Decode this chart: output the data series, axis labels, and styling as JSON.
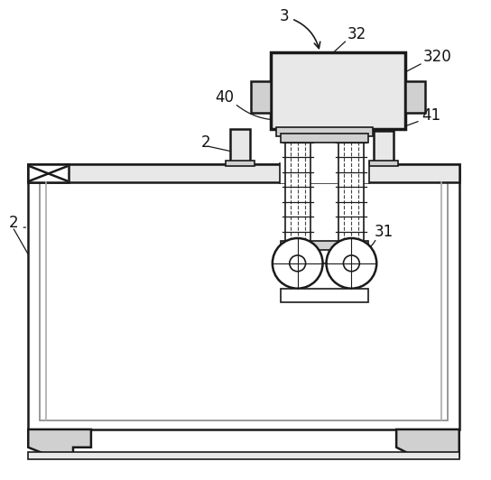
{
  "bg_color": "#ffffff",
  "lc": "#1a1a1a",
  "gray1": "#e8e8e8",
  "gray2": "#d0d0d0",
  "figsize": [
    5.44,
    5.32
  ],
  "dpi": 100
}
